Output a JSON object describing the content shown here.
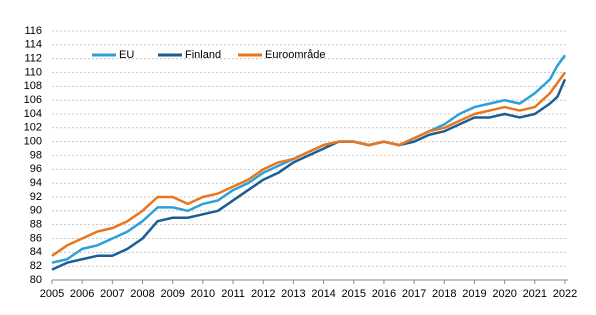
{
  "chart_data": {
    "type": "line",
    "x": [
      2005,
      2005.5,
      2006,
      2006.5,
      2007,
      2007.5,
      2008,
      2008.5,
      2009,
      2009.5,
      2010,
      2010.5,
      2011,
      2011.5,
      2012,
      2012.5,
      2013,
      2013.5,
      2014,
      2014.5,
      2015,
      2015.5,
      2016,
      2016.5,
      2017,
      2017.5,
      2018,
      2018.5,
      2019,
      2019.5,
      2020,
      2020.5,
      2021,
      2021.5,
      2021.75,
      2022
    ],
    "series": [
      {
        "name": "EU",
        "color": "#2d9fd9",
        "values": [
          82.5,
          83,
          84.5,
          85,
          86,
          87,
          88.5,
          90.5,
          90.5,
          90,
          91,
          91.5,
          93,
          94,
          95.5,
          96.5,
          97.5,
          98.5,
          99.5,
          100,
          100,
          99.5,
          100,
          99.5,
          100.5,
          101.5,
          102.5,
          104,
          105,
          105.5,
          106,
          105.5,
          107,
          109,
          111,
          112.5
        ]
      },
      {
        "name": "Finland",
        "color": "#1b5e95",
        "values": [
          81.5,
          82.5,
          83,
          83.5,
          83.5,
          84.5,
          86,
          88.5,
          89,
          89,
          89.5,
          90,
          91.5,
          93,
          94.5,
          95.5,
          97,
          98,
          99,
          100,
          100,
          99.5,
          100,
          99.5,
          100,
          101,
          101.5,
          102.5,
          103.5,
          103.5,
          104,
          103.5,
          104,
          105.5,
          106.5,
          109
        ]
      },
      {
        "name": "Euroområde",
        "color": "#e8761f",
        "values": [
          83.5,
          85,
          86,
          87,
          87.5,
          88.5,
          90,
          92,
          92,
          91,
          92,
          92.5,
          93.5,
          94.5,
          96,
          97,
          97.5,
          98.5,
          99.5,
          100,
          100,
          99.5,
          100,
          99.5,
          100.5,
          101.5,
          102,
          103,
          104,
          104.5,
          105,
          104.5,
          105,
          107,
          108.5,
          110
        ]
      }
    ],
    "xlim": [
      2005,
      2022.1
    ],
    "xticks": [
      2005,
      2006,
      2007,
      2008,
      2009,
      2010,
      2011,
      2012,
      2013,
      2014,
      2015,
      2016,
      2017,
      2018,
      2019,
      2020,
      2021,
      2022
    ],
    "ylim": [
      80,
      116
    ],
    "yticks": [
      80,
      82,
      84,
      86,
      88,
      90,
      92,
      94,
      96,
      98,
      100,
      102,
      104,
      106,
      108,
      110,
      112,
      114,
      116
    ],
    "grid": true
  }
}
